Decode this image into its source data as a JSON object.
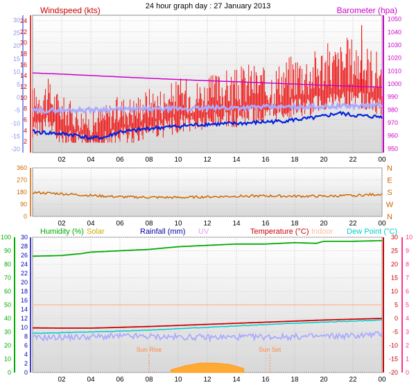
{
  "title": "24 hour graph day : 27 January 2013",
  "colors": {
    "wind": "#ee1111",
    "wind_axis": "#cc0000",
    "temp_left_axis": "#8899ee",
    "gust": "#aaaaff",
    "barometer": "#cc00cc",
    "avg_wind": "#0022dd",
    "direction": "#cc6600",
    "humidity": "#00aa00",
    "solar": "#ccaa00",
    "rainfall": "#0000aa",
    "uv": "#ee99ee",
    "temperature": "#cc0000",
    "indoor": "#ffbb99",
    "dew_point": "#00cccc",
    "right_axis_pink": "#ff3388",
    "sunmark": "#ff8844"
  },
  "chart_data": [
    {
      "type": "line",
      "panel": "wind-barometer",
      "left_label": "Windspeed (kts)",
      "right_label": "Barometer (hpa)",
      "x_ticks": [
        "02",
        "04",
        "06",
        "08",
        "10",
        "12",
        "14",
        "16",
        "18",
        "20",
        "22",
        "00"
      ],
      "left_ticks": [
        2,
        4,
        6,
        8,
        10,
        12,
        14,
        16,
        18,
        20,
        22,
        24
      ],
      "left_temp_ticks": [
        -20,
        -15,
        -10,
        -5,
        0,
        5,
        10,
        15,
        20,
        25,
        30
      ],
      "right_ticks": [
        950,
        960,
        970,
        980,
        990,
        1000,
        1010,
        1020,
        1030,
        1040,
        1050
      ],
      "ylim_left": [
        0,
        25
      ],
      "ylim_right": [
        947,
        1053
      ],
      "series": [
        {
          "key": "wind",
          "x": [
            0,
            1,
            2,
            3,
            4,
            5,
            6,
            7,
            8,
            9,
            10,
            11,
            12,
            13,
            14,
            15,
            16,
            17,
            18,
            19,
            20,
            21,
            22,
            23,
            24
          ],
          "values": [
            6,
            7,
            5,
            4,
            3,
            4,
            5,
            5,
            6,
            6,
            7,
            7,
            7,
            8,
            8,
            9,
            8,
            9,
            10,
            10,
            11,
            11,
            12,
            11,
            10
          ]
        },
        {
          "key": "gust_temp",
          "x": [
            0,
            2,
            4,
            6,
            8,
            10,
            12,
            14,
            16,
            18,
            20,
            22,
            24
          ],
          "values": [
            7.6,
            7.7,
            7.8,
            7.9,
            7.9,
            8.0,
            8.1,
            8.2,
            8.3,
            8.3,
            8.4,
            8.5,
            8.6
          ]
        },
        {
          "key": "avg_wind",
          "x": [
            0,
            1,
            2,
            3,
            4,
            5,
            6,
            7,
            8,
            9,
            10,
            11,
            12,
            13,
            14,
            15,
            16,
            17,
            18,
            19,
            20,
            21,
            22,
            23,
            24
          ],
          "values": [
            3.8,
            3.6,
            3.4,
            3.2,
            2.6,
            2.8,
            3.8,
            4.0,
            4.4,
            4.6,
            4.8,
            5.0,
            5.2,
            5.2,
            5.3,
            5.4,
            5.6,
            5.7,
            6.0,
            6.2,
            6.6,
            7.2,
            6.8,
            6.6,
            6.5
          ]
        },
        {
          "key": "barometer",
          "x": [
            0,
            2,
            4,
            6,
            8,
            10,
            12,
            14,
            16,
            18,
            20,
            22,
            24
          ],
          "values": [
            1008.5,
            1007.6,
            1006.5,
            1005.4,
            1004.4,
            1003.4,
            1002.5,
            1001.7,
            1000.8,
            999.9,
            999.0,
            998.2,
            997.5
          ]
        }
      ]
    },
    {
      "type": "line",
      "panel": "wind-direction",
      "x_ticks": [
        "02",
        "04",
        "06",
        "08",
        "10",
        "12",
        "14",
        "16",
        "18",
        "20",
        "22",
        "00"
      ],
      "left_ticks": [
        0,
        90,
        180,
        270,
        360
      ],
      "right_labels": [
        "N",
        "W",
        "S",
        "E",
        "N"
      ],
      "ylim": [
        0,
        360
      ],
      "series": [
        {
          "key": "direction",
          "x": [
            0,
            2,
            4,
            6,
            8,
            10,
            12,
            14,
            16,
            18,
            20,
            22,
            24
          ],
          "values": [
            178,
            168,
            155,
            145,
            142,
            140,
            145,
            150,
            152,
            150,
            150,
            155,
            165
          ]
        }
      ]
    },
    {
      "type": "line",
      "panel": "humidity-temperature",
      "labels": [
        "Humidity (%)",
        "Solar",
        "Rainfall (mm)",
        "UV",
        "Temperature (°C)",
        "Indoor",
        "Dew Point (°C)"
      ],
      "x_ticks": [
        "02",
        "04",
        "06",
        "08",
        "10",
        "12",
        "14",
        "16",
        "18",
        "20",
        "22",
        "00"
      ],
      "humidity_ticks": [
        0,
        10,
        20,
        30,
        40,
        50,
        60,
        70,
        80,
        90,
        100
      ],
      "rain_ticks": [
        0,
        2,
        4,
        6,
        8,
        10,
        12,
        14,
        16,
        18,
        20,
        22,
        24,
        26,
        28,
        30
      ],
      "temp_ticks": [
        -20,
        -15,
        -10,
        -5,
        0,
        5,
        10,
        15,
        20,
        25,
        30
      ],
      "uv_ticks": [
        0,
        1,
        2,
        3,
        4,
        5,
        6,
        7,
        8,
        9,
        10
      ],
      "ylim_humidity": [
        0,
        100
      ],
      "ylim_temp": [
        -20,
        30
      ],
      "annotations": [
        "Sun Rise",
        "Sun Set"
      ],
      "series": [
        {
          "key": "humidity",
          "x": [
            0,
            2,
            3.4,
            4,
            6,
            8,
            10,
            12,
            14,
            16,
            18,
            19.5,
            20,
            22,
            24
          ],
          "values": [
            86,
            86.5,
            88,
            89,
            90,
            91,
            93,
            94,
            95,
            95,
            96,
            95.5,
            97,
            97,
            97.5
          ]
        },
        {
          "key": "temperature",
          "x": [
            0,
            2,
            4,
            6,
            8,
            10,
            12,
            14,
            16,
            18,
            20,
            22,
            24
          ],
          "values": [
            -3.5,
            -3.6,
            -3.6,
            -3.3,
            -3.0,
            -2.6,
            -2.2,
            -1.8,
            -1.4,
            -1.0,
            -0.6,
            -0.3,
            0.0
          ]
        },
        {
          "key": "dew_point",
          "x": [
            0,
            2,
            4,
            6,
            8,
            10,
            12,
            14,
            16,
            18,
            20,
            22,
            24
          ],
          "values": [
            -5.5,
            -5.3,
            -5.0,
            -4.7,
            -4.3,
            -3.8,
            -3.3,
            -2.8,
            -2.3,
            -1.8,
            -1.4,
            -1.0,
            -0.6
          ]
        },
        {
          "key": "indoor",
          "x": [
            0,
            24
          ],
          "values": [
            5.0,
            5.0
          ]
        },
        {
          "key": "gust",
          "x": [
            0,
            2,
            4,
            6,
            8,
            10,
            12,
            14,
            16,
            18,
            20,
            22,
            24
          ],
          "values": [
            -7.2,
            -7.0,
            -6.8,
            -6.6,
            -6.7,
            -6.9,
            -7.0,
            -6.9,
            -6.8,
            -6.8,
            -6.6,
            -6.4,
            -5.8
          ]
        },
        {
          "key": "solar",
          "x": [
            9.5,
            10.5,
            11.5,
            12.5,
            13.5,
            14.5
          ],
          "values": [
            0.2,
            0.5,
            0.7,
            0.7,
            0.6,
            0.3
          ]
        }
      ]
    }
  ]
}
